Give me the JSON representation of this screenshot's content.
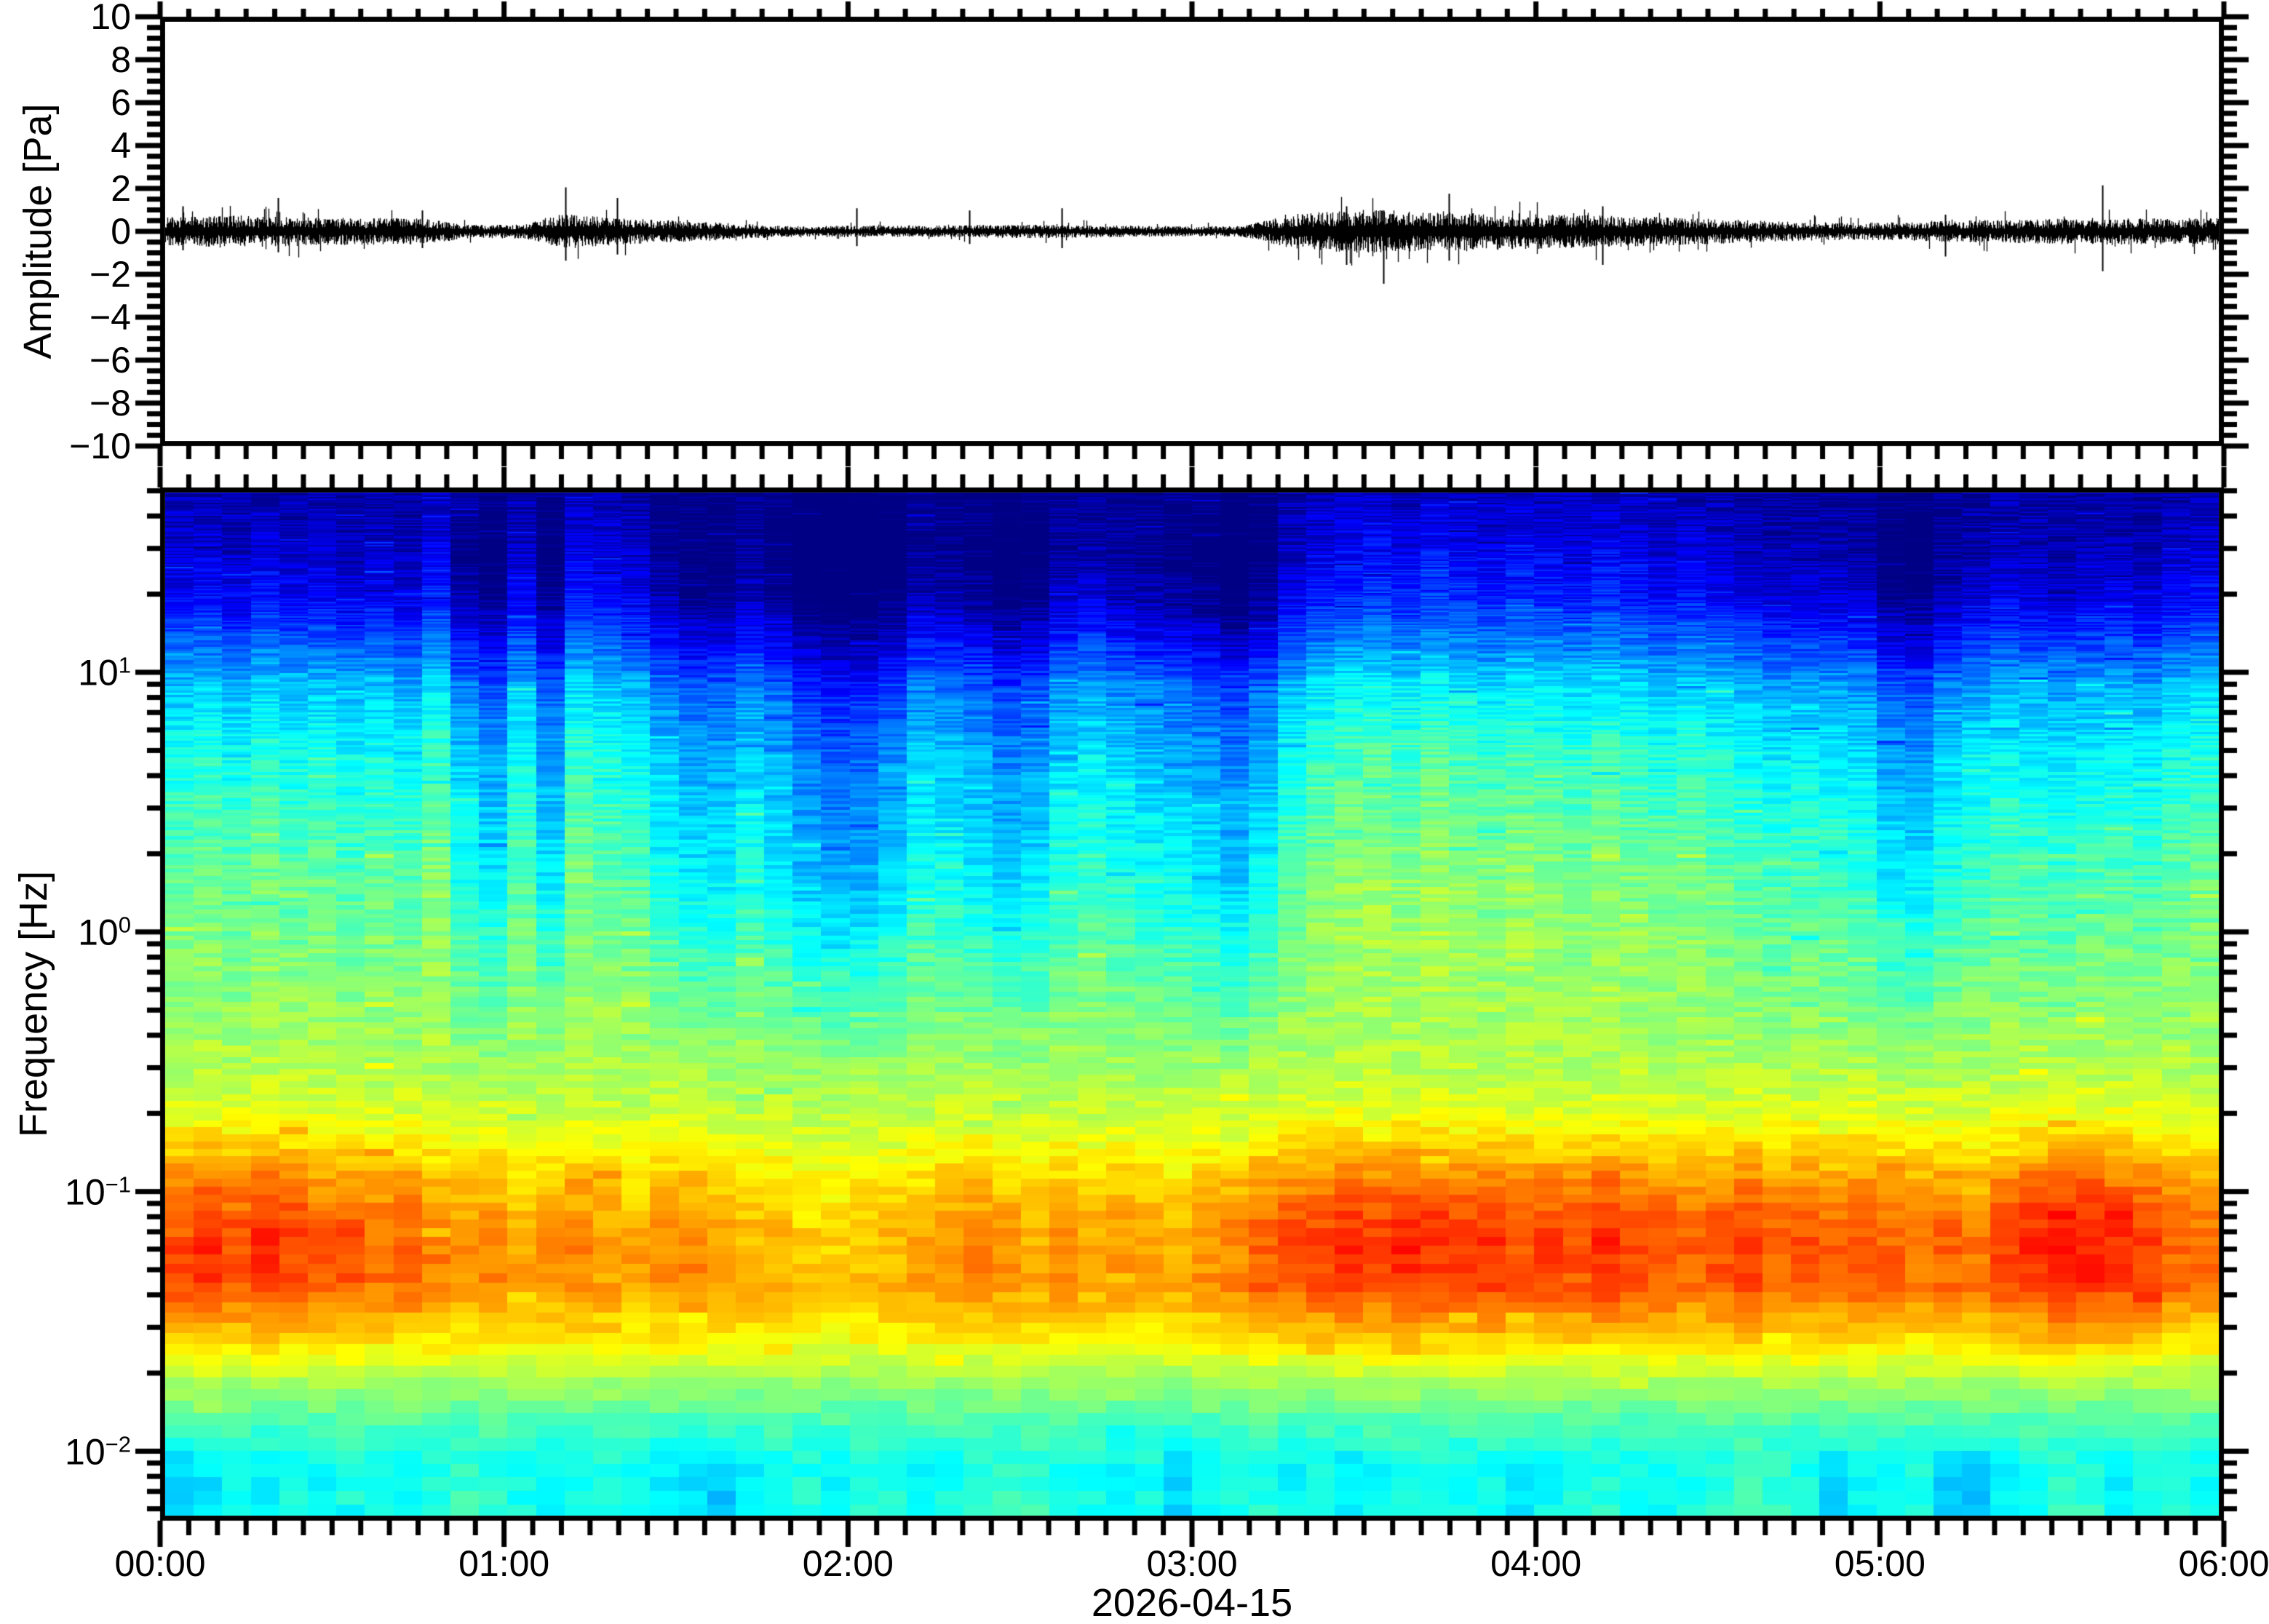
{
  "page": {
    "background": "#ffffff",
    "axis_color": "#000000"
  },
  "chart_data": [
    {
      "type": "line",
      "name": "infrasound-waveform",
      "ylabel": "Amplitude [Pa]",
      "ylim": [
        -10,
        10
      ],
      "y_major_tick_step": 2,
      "y_minor_tick_step": 0.5,
      "y_tick_labels": [
        {
          "text": "10",
          "value": 10
        },
        {
          "text": "8",
          "value": 8
        },
        {
          "text": "6",
          "value": 6
        },
        {
          "text": "4",
          "value": 4
        },
        {
          "text": "2",
          "value": 2
        },
        {
          "text": "0",
          "value": 0
        },
        {
          "text": "−2",
          "value": -2
        },
        {
          "text": "−4",
          "value": -4
        },
        {
          "text": "−6",
          "value": -6
        },
        {
          "text": "−8",
          "value": -8
        },
        {
          "text": "−10",
          "value": -10
        }
      ],
      "x_range_hours": [
        0,
        6
      ],
      "x_major_tick_minutes": 60,
      "x_minor_tick_minutes": 5,
      "line_color": "#000000",
      "noise_envelope": {
        "t_hours": [
          0,
          0.2,
          0.5,
          0.75,
          0.9,
          1.05,
          1.17,
          1.3,
          1.5,
          1.7,
          1.85,
          2.0,
          2.2,
          2.5,
          2.8,
          3.0,
          3.15,
          3.3,
          3.5,
          3.7,
          3.9,
          4.1,
          4.3,
          4.5,
          4.7,
          4.9,
          5.1,
          5.25,
          5.45,
          5.65,
          5.85,
          6.0
        ],
        "amplitude_pa": [
          0.3,
          0.35,
          0.3,
          0.28,
          0.14,
          0.16,
          0.38,
          0.3,
          0.24,
          0.16,
          0.11,
          0.13,
          0.12,
          0.15,
          0.13,
          0.11,
          0.13,
          0.38,
          0.48,
          0.42,
          0.4,
          0.36,
          0.33,
          0.28,
          0.22,
          0.19,
          0.2,
          0.24,
          0.26,
          0.3,
          0.28,
          0.3
        ]
      },
      "spikes": [
        {
          "t_hours": 0.05,
          "up_pa": 0.6,
          "down_pa": 0.45
        },
        {
          "t_hours": 0.33,
          "up_pa": 0.8,
          "down_pa": 0.5
        },
        {
          "t_hours": 0.75,
          "up_pa": 0.5,
          "down_pa": 0.4
        },
        {
          "t_hours": 1.17,
          "up_pa": 1.05,
          "down_pa": 0.7
        },
        {
          "t_hours": 1.32,
          "up_pa": 0.8,
          "down_pa": 0.55
        },
        {
          "t_hours": 2.02,
          "up_pa": 0.55,
          "down_pa": 0.35
        },
        {
          "t_hours": 2.35,
          "up_pa": 0.5,
          "down_pa": 0.3
        },
        {
          "t_hours": 2.62,
          "up_pa": 0.55,
          "down_pa": 0.4
        },
        {
          "t_hours": 3.45,
          "up_pa": 0.6,
          "down_pa": 0.8
        },
        {
          "t_hours": 3.56,
          "up_pa": 0.5,
          "down_pa": 1.25
        },
        {
          "t_hours": 3.75,
          "up_pa": 0.9,
          "down_pa": 0.7
        },
        {
          "t_hours": 4.2,
          "up_pa": 0.6,
          "down_pa": 0.8
        },
        {
          "t_hours": 5.2,
          "up_pa": 0.4,
          "down_pa": 0.6
        },
        {
          "t_hours": 5.66,
          "up_pa": 1.1,
          "down_pa": 0.95
        }
      ]
    },
    {
      "type": "heatmap",
      "name": "spectrogram",
      "ylabel": "Frequency [Hz]",
      "yscale": "log",
      "ylim_hz": [
        0.0054,
        51.5
      ],
      "y_tick_labels": [
        {
          "base": "10",
          "exponent": "1",
          "hz": 10
        },
        {
          "base": "10",
          "exponent": "0",
          "hz": 1
        },
        {
          "base": "10",
          "exponent": "−1",
          "hz": 0.1
        },
        {
          "base": "10",
          "exponent": "−2",
          "hz": 0.01
        }
      ],
      "colormap": "jet",
      "time_bin_minutes": 5,
      "x_tick_labels": [
        {
          "text": "00:00",
          "hour": 0
        },
        {
          "text": "01:00",
          "hour": 1
        },
        {
          "text": "02:00",
          "hour": 2
        },
        {
          "text": "03:00",
          "hour": 3
        },
        {
          "text": "04:00",
          "hour": 4
        },
        {
          "text": "05:00",
          "hour": 5
        },
        {
          "text": "06:00",
          "hour": 6
        }
      ],
      "xlabel_date": "2026-04-15",
      "spectral_level_profile": {
        "log10_hz": [
          -2.27,
          -2.05,
          -1.9,
          -1.72,
          -1.55,
          -1.35,
          -1.15,
          -0.95,
          -0.7,
          -0.4,
          0.0,
          0.4,
          0.7,
          0.95,
          1.1,
          1.3,
          1.5,
          1.72
        ],
        "level": [
          0.4,
          0.385,
          0.44,
          0.53,
          0.64,
          0.715,
          0.705,
          0.66,
          0.57,
          0.52,
          0.47,
          0.41,
          0.36,
          0.29,
          0.2,
          0.09,
          0.045,
          0.03
        ]
      },
      "column_levels": {
        "description": "relative spectral levels per 5-minute column (0 = quiet/blue, 1 = loud/red)",
        "high_freq": [
          0.58,
          0.62,
          0.55,
          0.63,
          0.57,
          0.6,
          0.53,
          0.58,
          0.52,
          0.68,
          0.4,
          0.3,
          0.55,
          0.3,
          0.65,
          0.6,
          0.55,
          0.4,
          0.3,
          0.3,
          0.42,
          0.32,
          0.18,
          0.12,
          0.14,
          0.22,
          0.4,
          0.38,
          0.32,
          0.22,
          0.27,
          0.44,
          0.5,
          0.42,
          0.38,
          0.34,
          0.28,
          0.2,
          0.33,
          0.55,
          0.66,
          0.72,
          0.74,
          0.68,
          0.75,
          0.7,
          0.65,
          0.72,
          0.68,
          0.64,
          0.7,
          0.66,
          0.6,
          0.65,
          0.6,
          0.55,
          0.5,
          0.52,
          0.5,
          0.46,
          0.3,
          0.26,
          0.42,
          0.48,
          0.55,
          0.52,
          0.48,
          0.52,
          0.55,
          0.5,
          0.58,
          0.62
        ],
        "microbarom_band": [
          0.8,
          0.86,
          0.76,
          0.88,
          0.8,
          0.72,
          0.76,
          0.66,
          0.7,
          0.62,
          0.56,
          0.6,
          0.5,
          0.56,
          0.6,
          0.55,
          0.5,
          0.56,
          0.6,
          0.5,
          0.46,
          0.46,
          0.4,
          0.38,
          0.42,
          0.46,
          0.5,
          0.56,
          0.6,
          0.55,
          0.5,
          0.56,
          0.5,
          0.56,
          0.5,
          0.46,
          0.55,
          0.6,
          0.7,
          0.76,
          0.8,
          0.86,
          0.8,
          0.9,
          0.85,
          0.8,
          0.86,
          0.76,
          0.8,
          0.76,
          0.86,
          0.8,
          0.76,
          0.7,
          0.76,
          0.8,
          0.7,
          0.76,
          0.7,
          0.76,
          0.7,
          0.66,
          0.7,
          0.66,
          0.8,
          0.86,
          0.95,
          0.92,
          0.86,
          0.8,
          0.7,
          0.66
        ],
        "low_freq": [
          0.25,
          0.35,
          0.45,
          0.4,
          0.5,
          0.45,
          0.55,
          0.5,
          0.45,
          0.55,
          0.65,
          0.6,
          0.5,
          0.45,
          0.5,
          0.55,
          0.45,
          0.4,
          0.35,
          0.25,
          0.4,
          0.5,
          0.55,
          0.45,
          0.5,
          0.55,
          0.45,
          0.5,
          0.55,
          0.65,
          0.62,
          0.55,
          0.5,
          0.45,
          0.5,
          0.3,
          0.45,
          0.5,
          0.55,
          0.45,
          0.5,
          0.42,
          0.48,
          0.55,
          0.5,
          0.45,
          0.5,
          0.35,
          0.45,
          0.5,
          0.55,
          0.5,
          0.45,
          0.5,
          0.55,
          0.65,
          0.62,
          0.55,
          0.3,
          0.45,
          0.5,
          0.55,
          0.28,
          0.25,
          0.4,
          0.5,
          0.6,
          0.55,
          0.45,
          0.5,
          0.55,
          0.5
        ]
      }
    }
  ]
}
